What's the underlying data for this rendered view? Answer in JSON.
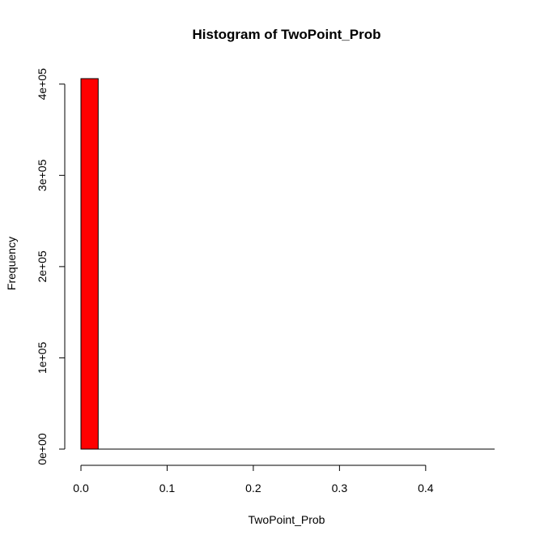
{
  "chart_data": {
    "type": "bar",
    "title": "Histogram of TwoPoint_Prob",
    "xlabel": "TwoPoint_Prob",
    "ylabel": "Frequency",
    "bin_edges": [
      0.0,
      0.02
    ],
    "values": [
      406000
    ],
    "xlim": [
      0.0,
      0.48
    ],
    "ylim": [
      0,
      406000
    ],
    "x_ticks": [
      0.0,
      0.1,
      0.2,
      0.3,
      0.4
    ],
    "x_tick_labels": [
      "0.0",
      "0.1",
      "0.2",
      "0.3",
      "0.4"
    ],
    "y_ticks": [
      0,
      100000,
      200000,
      300000,
      400000
    ],
    "y_tick_labels": [
      "0e+00",
      "1e+05",
      "2e+05",
      "3e+05",
      "4e+05"
    ],
    "bar_color": "#ff0000",
    "grid": false
  }
}
